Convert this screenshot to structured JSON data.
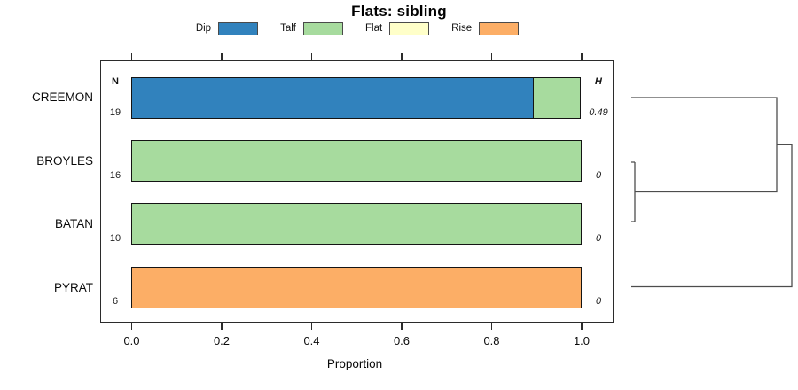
{
  "title": "Flats: sibling",
  "legend": {
    "items": [
      {
        "label": "Dip",
        "color": "#3182BD"
      },
      {
        "label": "Talf",
        "color": "#A7DB9E"
      },
      {
        "label": "Flat",
        "color": "#FFFFC9"
      },
      {
        "label": "Rise",
        "color": "#FCAE66"
      }
    ]
  },
  "columns": {
    "n_header": "N",
    "h_header": "H"
  },
  "rows": [
    {
      "name": "CREEMON",
      "n": "19",
      "h": "0.49",
      "segments": [
        {
          "key": "Dip",
          "fraction": 0.8947
        },
        {
          "key": "Talf",
          "fraction": 0.1053
        }
      ]
    },
    {
      "name": "BROYLES",
      "n": "16",
      "h": "0",
      "segments": [
        {
          "key": "Talf",
          "fraction": 1
        }
      ]
    },
    {
      "name": "BATAN",
      "n": "10",
      "h": "0",
      "segments": [
        {
          "key": "Talf",
          "fraction": 1
        }
      ]
    },
    {
      "name": "PYRAT",
      "n": "6",
      "h": "0",
      "segments": [
        {
          "key": "Rise",
          "fraction": 1
        }
      ]
    }
  ],
  "x_axis": {
    "label": "Proportion",
    "ticks": [
      "0.0",
      "0.2",
      "0.4",
      "0.6",
      "0.8",
      "1.0"
    ]
  },
  "chart_data": {
    "type": "bar",
    "subtype": "horizontal_stacked_proportion",
    "title": "Flats: sibling",
    "xlabel": "Proportion",
    "xlim": [
      0,
      1
    ],
    "x_ticks": [
      0.0,
      0.2,
      0.4,
      0.6,
      0.8,
      1.0
    ],
    "categories": [
      "CREEMON",
      "BROYLES",
      "BATAN",
      "PYRAT"
    ],
    "n_counts": [
      19,
      16,
      10,
      6
    ],
    "entropy_H": [
      0.49,
      0,
      0,
      0
    ],
    "series": [
      {
        "name": "Dip",
        "color": "#3182BD",
        "values": [
          0.8947,
          0,
          0,
          0
        ]
      },
      {
        "name": "Talf",
        "color": "#A7DB9E",
        "values": [
          0.1053,
          1,
          1,
          0
        ]
      },
      {
        "name": "Flat",
        "color": "#FFFFC9",
        "values": [
          0,
          0,
          0,
          0
        ]
      },
      {
        "name": "Rise",
        "color": "#FCAE66",
        "values": [
          0,
          0,
          0,
          1
        ]
      }
    ],
    "legend_position": "top",
    "grid": false,
    "dendrogram": {
      "present": true,
      "side": "right",
      "merges": [
        {
          "pair": [
            "BROYLES",
            "BATAN"
          ],
          "order": 1
        },
        {
          "pair": [
            "CREEMON",
            "(BROYLES,BATAN)"
          ],
          "order": 2
        },
        {
          "pair": [
            "(CREEMON,BROYLES,BATAN)",
            "PYRAT"
          ],
          "order": 3
        }
      ]
    }
  }
}
